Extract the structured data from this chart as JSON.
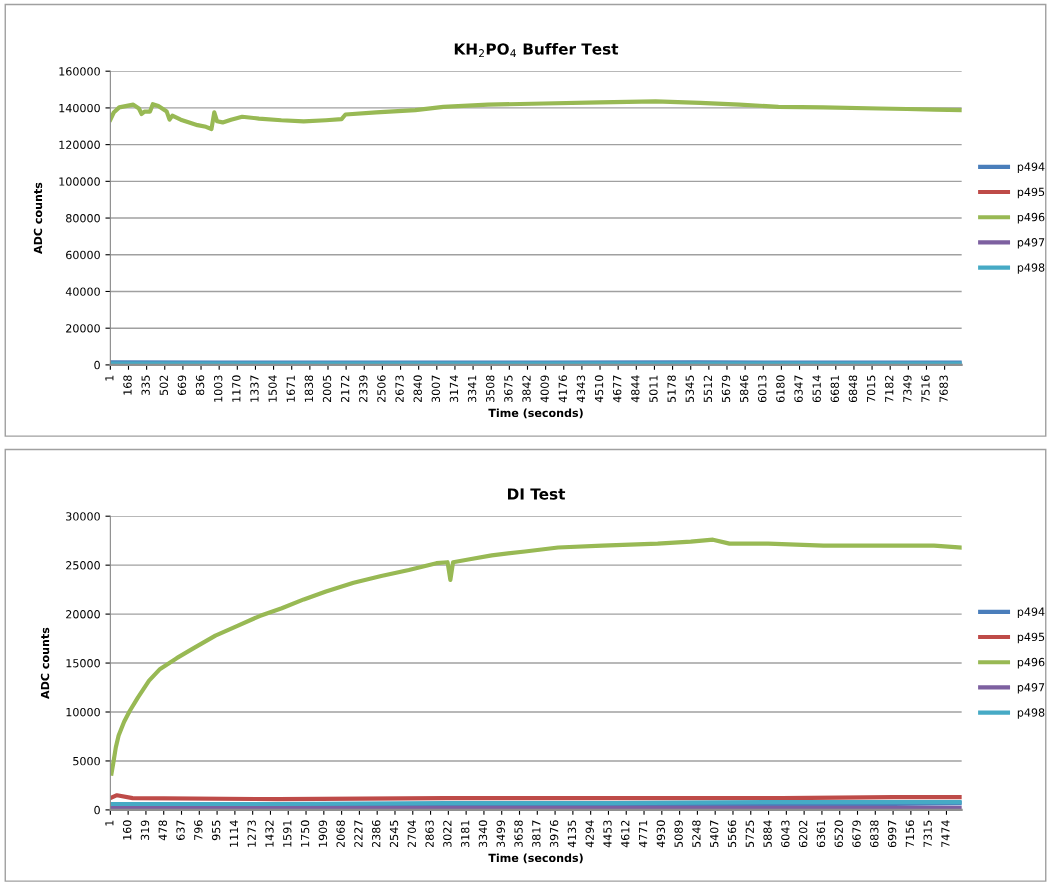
{
  "chart_data": [
    {
      "type": "line",
      "title": "KH$_{2}$PO$_{4}$ Buffer Test",
      "xlabel": "Time (seconds)",
      "ylabel": "ADC counts",
      "xlim": [
        1,
        7840
      ],
      "xticks": [
        1,
        168,
        335,
        502,
        669,
        836,
        1003,
        1170,
        1337,
        1504,
        1671,
        1838,
        2005,
        2172,
        2339,
        2506,
        2673,
        2840,
        3007,
        3174,
        3341,
        3508,
        3675,
        3842,
        4009,
        4176,
        4343,
        4510,
        4677,
        4844,
        5011,
        5178,
        5345,
        5512,
        5679,
        5846,
        6013,
        6180,
        6347,
        6514,
        6681,
        6848,
        7015,
        7182,
        7349,
        7516,
        7683
      ],
      "ylim": [
        0,
        160000
      ],
      "yticks": [
        0,
        20000,
        40000,
        60000,
        80000,
        100000,
        120000,
        140000,
        160000
      ],
      "grid": "y",
      "legend": "right",
      "marker": "none",
      "series": [
        {
          "name": "p494",
          "color": "#4a7ebb",
          "x": [
            1,
            1000,
            2600,
            4000,
            5400,
            6800,
            7830
          ],
          "values": [
            1400,
            1200,
            1300,
            1200,
            1400,
            1200,
            1300
          ]
        },
        {
          "name": "p495",
          "color": "#be4b48"
        },
        {
          "name": "p496",
          "color": "#98b954",
          "x": [
            1,
            32,
            83,
            212,
            264,
            289,
            315,
            366,
            392,
            443,
            520,
            546,
            572,
            649,
            727,
            804,
            881,
            932,
            958,
            984,
            1035,
            1112,
            1215,
            1369,
            1575,
            1781,
            1986,
            2130,
            2166,
            2449,
            2809,
            3067,
            3478,
            3993,
            4507,
            5021,
            5433,
            5793,
            6153,
            6565,
            7079,
            7336,
            7593,
            7830
          ],
          "values": [
            133600,
            137500,
            140300,
            141800,
            139700,
            136700,
            138000,
            138000,
            142000,
            141000,
            138000,
            133600,
            135800,
            133600,
            132100,
            130600,
            129700,
            128500,
            137600,
            132700,
            132100,
            133600,
            135200,
            134200,
            133300,
            132700,
            133300,
            133900,
            136400,
            137600,
            138800,
            140600,
            141800,
            142400,
            143000,
            143600,
            142700,
            141800,
            140600,
            140300,
            139700,
            139400,
            139100,
            138800
          ]
        },
        {
          "name": "p497",
          "color": "#7d60a0"
        },
        {
          "name": "p498",
          "color": "#46aac5",
          "x": [
            1,
            1000,
            2600,
            4000,
            5400,
            6800,
            7830
          ],
          "values": [
            700,
            700,
            700,
            700,
            700,
            700,
            700
          ]
        }
      ]
    },
    {
      "type": "line",
      "title": "DI Test",
      "xlabel": "Time (seconds)",
      "ylabel": "ADC counts",
      "xlim": [
        1,
        7610
      ],
      "xticks": [
        1,
        160,
        319,
        478,
        637,
        796,
        955,
        1114,
        1273,
        1432,
        1591,
        1750,
        1909,
        2068,
        2227,
        2386,
        2545,
        2704,
        2863,
        3022,
        3181,
        3340,
        3499,
        3658,
        3817,
        3976,
        4135,
        4294,
        4453,
        4612,
        4771,
        4930,
        5089,
        5248,
        5407,
        5566,
        5725,
        5884,
        6043,
        6202,
        6361,
        6520,
        6679,
        6838,
        6997,
        7156,
        7315,
        7474
      ],
      "ylim": [
        0,
        30000
      ],
      "yticks": [
        0,
        5000,
        10000,
        15000,
        20000,
        25000,
        30000
      ],
      "grid": "y",
      "legend": "right",
      "marker": "none",
      "series": [
        {
          "name": "p494",
          "color": "#4a7ebb",
          "x": [
            1,
            1500,
            3000,
            4500,
            6000,
            7000,
            7610
          ],
          "values": [
            200,
            300,
            300,
            400,
            500,
            600,
            700
          ]
        },
        {
          "name": "p495",
          "color": "#be4b48",
          "x": [
            1,
            60,
            200,
            1500,
            3000,
            4500,
            6000,
            7000,
            7610
          ],
          "values": [
            1200,
            1500,
            1200,
            1100,
            1200,
            1200,
            1200,
            1300,
            1300
          ]
        },
        {
          "name": "p496",
          "color": "#98b954",
          "x": [
            11,
            26,
            50,
            75,
            124,
            174,
            248,
            347,
            446,
            594,
            742,
            940,
            1137,
            1335,
            1533,
            1730,
            1928,
            2175,
            2422,
            2669,
            2916,
            3015,
            3040,
            3064,
            3213,
            3410,
            3707,
            4003,
            4399,
            4893,
            5189,
            5387,
            5535,
            5881,
            6375,
            6869,
            7363,
            7610
          ],
          "values": [
            3700,
            4700,
            6400,
            7600,
            9000,
            10100,
            11500,
            13200,
            14400,
            15500,
            16500,
            17800,
            18800,
            19800,
            20600,
            21500,
            22300,
            23200,
            23900,
            24500,
            25200,
            25300,
            23500,
            25300,
            25600,
            26000,
            26400,
            26800,
            27000,
            27200,
            27400,
            27600,
            27200,
            27200,
            27000,
            27000,
            27000,
            26800
          ]
        },
        {
          "name": "p497",
          "color": "#7d60a0",
          "x": [
            1,
            1500,
            3000,
            4500,
            6000,
            7610
          ],
          "values": [
            200,
            200,
            200,
            200,
            200,
            200
          ]
        },
        {
          "name": "p498",
          "color": "#46aac5",
          "x": [
            1,
            1500,
            3000,
            4500,
            6000,
            7000,
            7610
          ],
          "values": [
            600,
            600,
            700,
            700,
            800,
            800,
            800
          ]
        }
      ]
    }
  ]
}
